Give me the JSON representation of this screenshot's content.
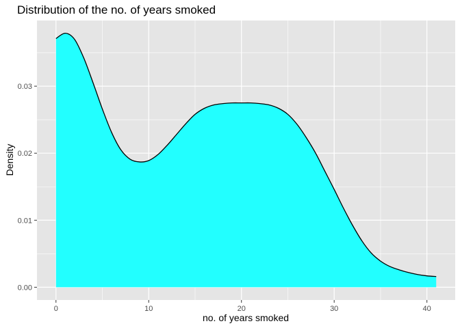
{
  "chart_data": {
    "type": "area",
    "title": "Distribution of the no. of years smoked",
    "xlabel": "no. of years smoked",
    "ylabel": "Density",
    "xlim": [
      -2.05,
      43.05
    ],
    "ylim": [
      -0.0019,
      0.0398
    ],
    "x_ticks": [
      0,
      10,
      20,
      30,
      40
    ],
    "x_tick_labels": [
      "0",
      "10",
      "20",
      "30",
      "40"
    ],
    "y_ticks": [
      0.0,
      0.01,
      0.02,
      0.03
    ],
    "y_tick_labels": [
      "0.00",
      "0.01",
      "0.02",
      "0.03"
    ],
    "grid": true,
    "legend": "none",
    "fill_color": "#22FFFF",
    "line_color": "#000000",
    "panel_color": "#E5E5E5",
    "grid_color": "#FFFFFF",
    "series": [
      {
        "x": [
          0,
          1,
          2,
          3,
          4,
          5,
          6,
          7,
          8,
          9,
          10,
          11,
          12,
          13,
          14,
          15,
          16,
          17,
          18,
          19,
          20,
          21,
          22,
          23,
          24,
          25,
          26,
          27,
          28,
          29,
          30,
          31,
          32,
          33,
          34,
          35,
          36,
          37,
          38,
          39,
          40,
          41
        ],
        "y": [
          0.0371,
          0.0379,
          0.037,
          0.0342,
          0.0305,
          0.0266,
          0.0231,
          0.0205,
          0.0191,
          0.0187,
          0.0189,
          0.0198,
          0.0212,
          0.0228,
          0.0244,
          0.0258,
          0.0267,
          0.0272,
          0.0274,
          0.0275,
          0.0275,
          0.0275,
          0.0274,
          0.0272,
          0.0267,
          0.0258,
          0.0243,
          0.0223,
          0.02,
          0.0173,
          0.0146,
          0.0118,
          0.0092,
          0.0069,
          0.0051,
          0.0039,
          0.0031,
          0.0026,
          0.0022,
          0.0019,
          0.0017,
          0.0016
        ]
      }
    ]
  }
}
